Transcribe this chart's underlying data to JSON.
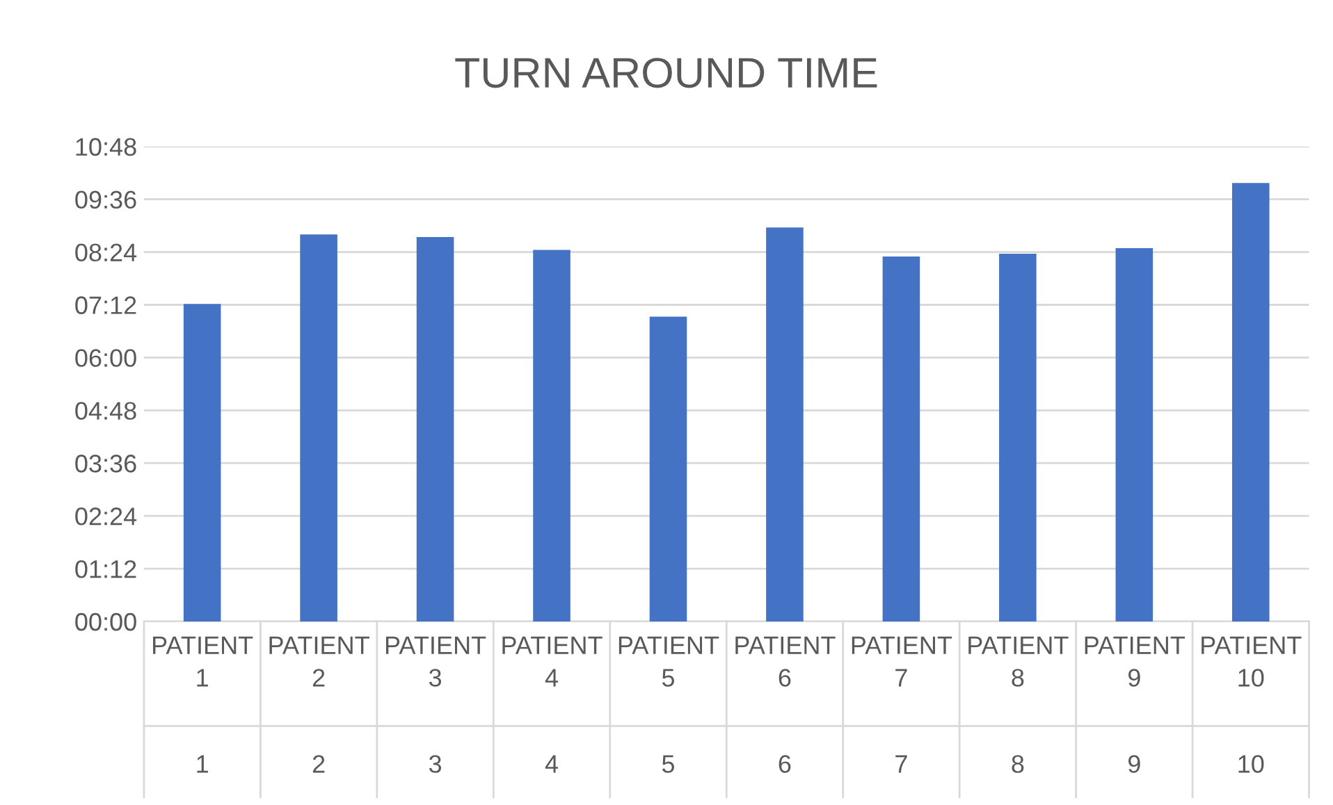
{
  "chart_data": {
    "type": "bar",
    "title": "TURN AROUND TIME",
    "categories": [
      "PATIENT\n1\n1",
      "PATIENT\n2\n2",
      "PATIENT\n3\n3",
      "PATIENT\n4\n4",
      "PATIENT\n5\n5",
      "PATIENT\n6\n6",
      "PATIENT\n7\n7",
      "PATIENT\n8\n8",
      "PATIENT\n9\n9",
      "PATIENT\n10\n10"
    ],
    "values": [
      7.22,
      8.8,
      8.74,
      8.45,
      6.93,
      8.96,
      8.3,
      8.36,
      8.49,
      9.97
    ],
    "color": "#4472c4",
    "ylim": [
      0,
      10.8
    ],
    "yticks": [
      {
        "value": 0,
        "label": "00:00"
      },
      {
        "value": 1.2,
        "label": "01:12"
      },
      {
        "value": 2.4,
        "label": "02:24"
      },
      {
        "value": 3.6,
        "label": "03:36"
      },
      {
        "value": 4.8,
        "label": "04:48"
      },
      {
        "value": 6,
        "label": "06:00"
      },
      {
        "value": 7.2,
        "label": "07:12"
      },
      {
        "value": 8.4,
        "label": "08:24"
      },
      {
        "value": 9.6,
        "label": "09:36"
      },
      {
        "value": 10.8,
        "label": "10:48"
      }
    ],
    "grid": "y"
  }
}
